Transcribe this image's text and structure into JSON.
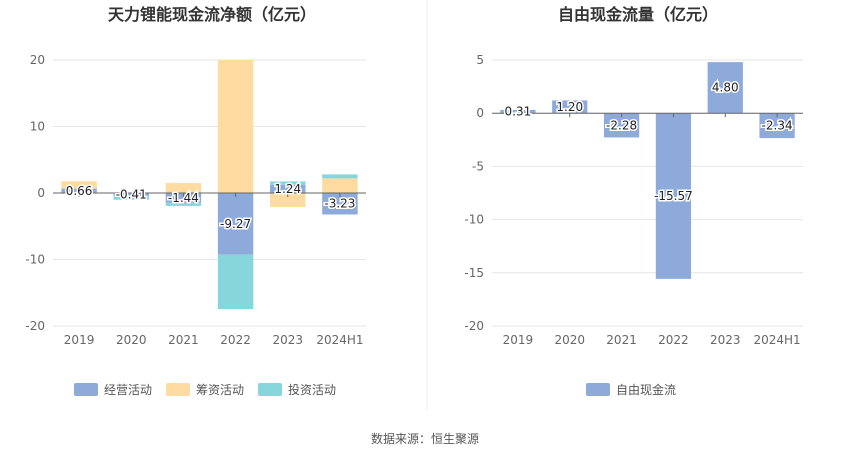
{
  "source_label": "数据来源：恒生聚源",
  "colors": {
    "operating": "#8eaadb",
    "financing": "#fedba0",
    "investing": "#87d6dc",
    "free_cash": "#8eaadb",
    "grid": "#e6e6e6",
    "axis_text": "#666666",
    "title_text": "#333333",
    "label_text": "#222222"
  },
  "chart_data": [
    {
      "type": "bar",
      "title": "天力锂能现金流净额（亿元）",
      "categories": [
        "2019",
        "2020",
        "2021",
        "2022",
        "2023",
        "2024H1"
      ],
      "ylim": [
        -20,
        20
      ],
      "yticks": [
        20,
        10,
        0,
        -10,
        -20
      ],
      "grid": true,
      "stacked": true,
      "legend_position": "bottom",
      "series": [
        {
          "name": "经营活动",
          "key": "operating",
          "values": [
            0.66,
            -0.41,
            -1.44,
            -9.27,
            1.24,
            -3.23
          ]
        },
        {
          "name": "筹资活动",
          "key": "financing",
          "values": [
            1.1,
            0.0,
            1.5,
            20.0,
            -2.1,
            2.2
          ]
        },
        {
          "name": "投资活动",
          "key": "investing",
          "values": [
            0.0,
            -0.6,
            -0.5,
            -8.2,
            0.5,
            0.6
          ]
        }
      ],
      "data_labels": [
        "0.66",
        "-0.41",
        "-1.44",
        "-9.27",
        "1.24",
        "-3.23"
      ]
    },
    {
      "type": "bar",
      "title": "自由现金流量（亿元）",
      "categories": [
        "2019",
        "2020",
        "2021",
        "2022",
        "2023",
        "2024H1"
      ],
      "ylim": [
        -20,
        5
      ],
      "yticks": [
        5,
        0,
        -5,
        -10,
        -15,
        -20
      ],
      "grid": true,
      "legend_position": "bottom",
      "series": [
        {
          "name": "自由现金流",
          "key": "free_cash",
          "values": [
            0.31,
            1.2,
            -2.28,
            -15.57,
            4.8,
            -2.34
          ]
        }
      ],
      "data_labels": [
        "0.31",
        "1.20",
        "-2.28",
        "-15.57",
        "4.80",
        "-2.34"
      ]
    }
  ]
}
